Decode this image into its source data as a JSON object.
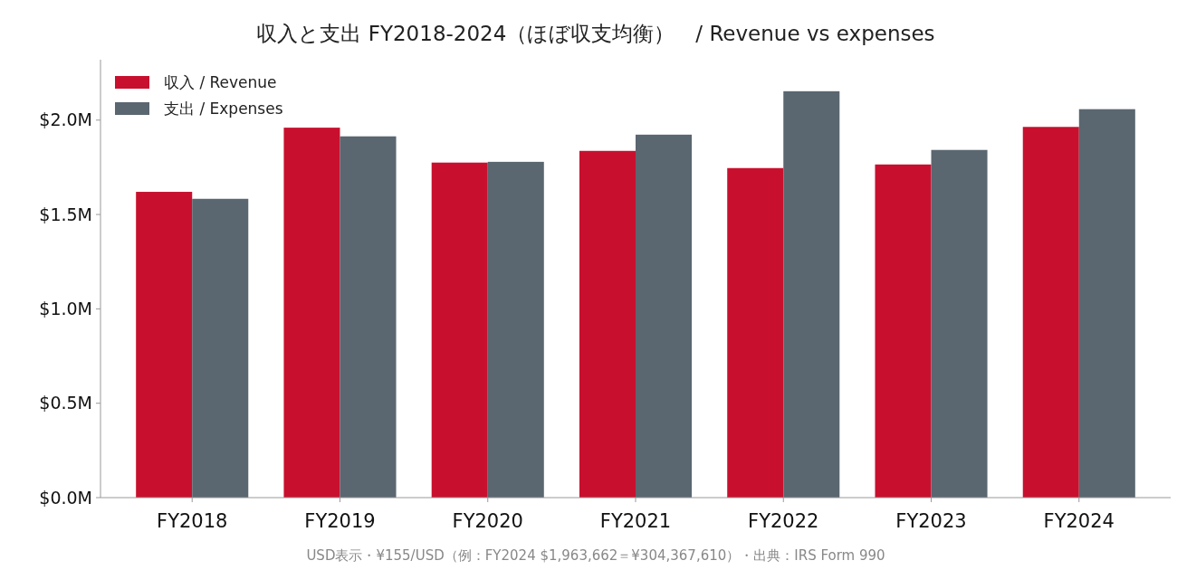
{
  "chart_data": {
    "type": "bar",
    "title": "収入と支出 FY2018-2024（ほぼ収支均衡）　/  Revenue vs expenses",
    "categories": [
      "FY2018",
      "FY2019",
      "FY2020",
      "FY2021",
      "FY2022",
      "FY2023",
      "FY2024"
    ],
    "series": [
      {
        "name": "収入 / Revenue",
        "color": "#c8102e",
        "values": [
          1.62,
          1.96,
          1.775,
          1.837,
          1.746,
          1.765,
          1.964
        ]
      },
      {
        "name": "支出 / Expenses",
        "color": "#5a6670",
        "values": [
          1.583,
          1.914,
          1.779,
          1.923,
          2.153,
          1.842,
          2.058
        ]
      }
    ],
    "ylim": [
      0,
      2.32
    ],
    "yticks": [
      {
        "value": 0,
        "label": "$0.0M"
      },
      {
        "value": 0.5,
        "label": "$0.5M"
      },
      {
        "value": 1,
        "label": "$1.0M"
      },
      {
        "value": 1.5,
        "label": "$1.5M"
      },
      {
        "value": 2,
        "label": "$2.0M"
      }
    ],
    "grid": false,
    "legend": "top left",
    "annotations": [
      "USD表示・¥155/USD（例：FY2024 $1,963,662＝¥304,367,610）・出典：IRS Form 990"
    ]
  }
}
